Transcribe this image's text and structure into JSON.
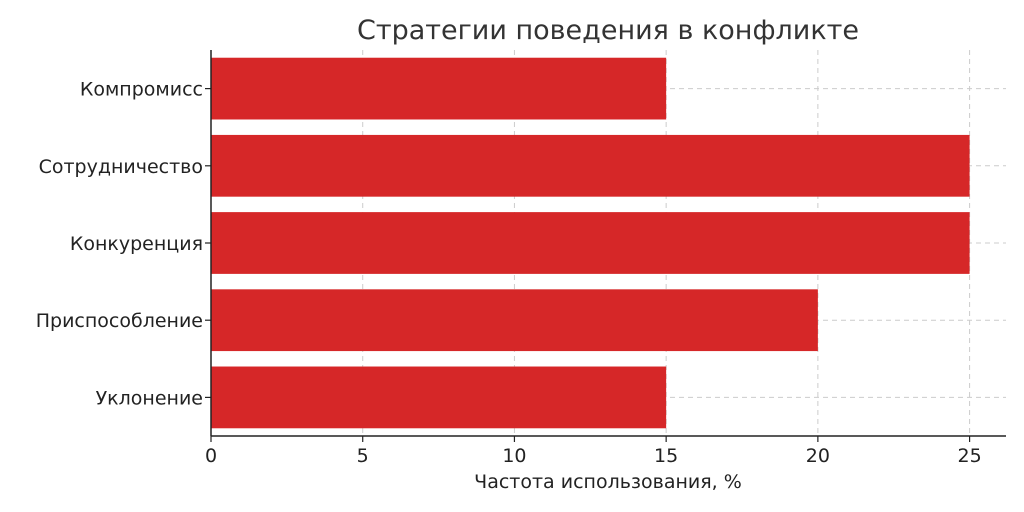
{
  "chart_data": {
    "type": "bar",
    "orientation": "horizontal",
    "title": "Стратегии поведения в конфликте",
    "xlabel": "Частота использования, %",
    "ylabel": "",
    "categories": [
      "Компромисс",
      "Сотрудничество",
      "Конкуренция",
      "Приспособление",
      "Уклонение"
    ],
    "values": [
      15,
      25,
      25,
      20,
      15
    ],
    "xlim": [
      0,
      26.2
    ],
    "xticks": [
      0,
      5,
      10,
      15,
      20,
      25
    ],
    "grid": true,
    "colors": {
      "bar": "#d62728"
    }
  }
}
